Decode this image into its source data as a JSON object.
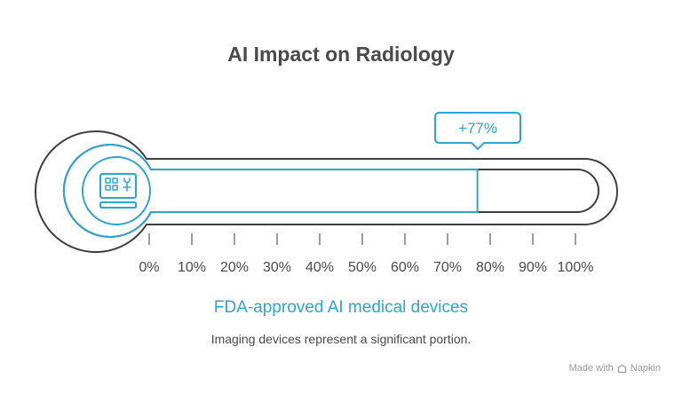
{
  "title": "AI Impact on Radiology",
  "callout": "+77%",
  "subtitle": "FDA-approved AI medical devices",
  "note": "Imaging devices represent a significant portion.",
  "credit": {
    "prefix": "Made with",
    "brand": "Napkin"
  },
  "icon": "computer-monitor-icon",
  "colors": {
    "accent": "#2ba6cf",
    "outline": "#3f3f3f",
    "text": "#4a4a4a",
    "muted": "#9a9a9a"
  },
  "chart_data": {
    "type": "bar",
    "categories": [
      "FDA-approved AI medical devices"
    ],
    "values": [
      77
    ],
    "unit": "%",
    "ylim": [
      0,
      100
    ],
    "tick_labels": [
      "0%",
      "10%",
      "20%",
      "30%",
      "40%",
      "50%",
      "60%",
      "70%",
      "80%",
      "90%",
      "100%"
    ]
  }
}
